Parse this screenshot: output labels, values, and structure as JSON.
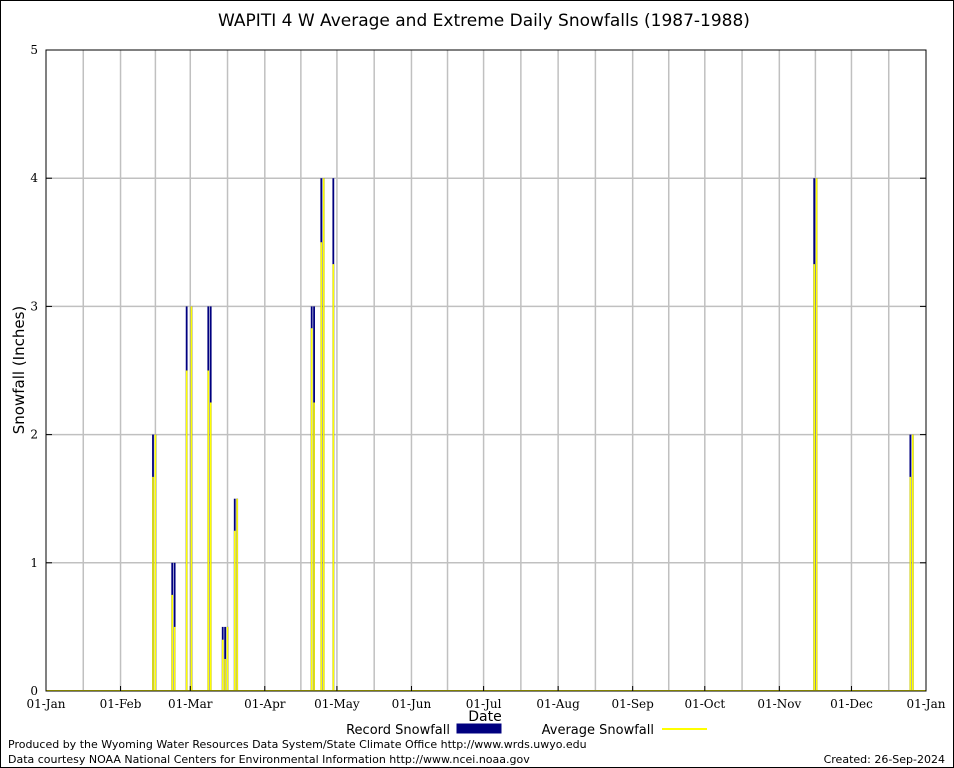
{
  "chart_data": {
    "type": "bar",
    "title": "WAPITI 4 W Average and Extreme Daily Snowfalls (1987-1988)",
    "xlabel": "Date",
    "ylabel": "Snowfall (Inches)",
    "ylim": [
      0,
      5
    ],
    "yticks": [
      "0",
      "1",
      "2",
      "3",
      "4",
      "5"
    ],
    "xticks": [
      "01-Jan",
      "01-Feb",
      "01-Mar",
      "01-Apr",
      "01-May",
      "01-Jun",
      "01-Jul",
      "01-Aug",
      "01-Sep",
      "01-Oct",
      "01-Nov",
      "01-Dec",
      "01-Jan"
    ],
    "grid": true,
    "series": [
      {
        "name": "Record Snowfall",
        "color": "#00007f",
        "points": [
          {
            "date": "Feb-14",
            "value": 2.0
          },
          {
            "date": "Feb-15",
            "value": 2.0
          },
          {
            "date": "Feb-22",
            "value": 1.0
          },
          {
            "date": "Feb-23",
            "value": 1.0
          },
          {
            "date": "Feb-28",
            "value": 3.0
          },
          {
            "date": "Mar-01",
            "value": 3.0
          },
          {
            "date": "Mar-08",
            "value": 3.0
          },
          {
            "date": "Mar-09",
            "value": 3.0
          },
          {
            "date": "Mar-14",
            "value": 0.5
          },
          {
            "date": "Mar-15",
            "value": 0.5
          },
          {
            "date": "Mar-16",
            "value": 0.5
          },
          {
            "date": "Mar-19",
            "value": 1.5
          },
          {
            "date": "Mar-20",
            "value": 1.5
          },
          {
            "date": "Apr-20",
            "value": 3.0
          },
          {
            "date": "Apr-21",
            "value": 3.0
          },
          {
            "date": "Apr-24",
            "value": 4.0
          },
          {
            "date": "Apr-25",
            "value": 4.0
          },
          {
            "date": "Apr-29",
            "value": 4.0
          },
          {
            "date": "Nov-15",
            "value": 4.0
          },
          {
            "date": "Nov-16",
            "value": 4.0
          },
          {
            "date": "Dec-25",
            "value": 2.0
          },
          {
            "date": "Dec-26",
            "value": 2.0
          }
        ]
      },
      {
        "name": "Average Snowfall",
        "color": "#ffff00",
        "points": [
          {
            "date": "Feb-14",
            "value": 1.67
          },
          {
            "date": "Feb-15",
            "value": 2.0
          },
          {
            "date": "Feb-22",
            "value": 0.75
          },
          {
            "date": "Feb-23",
            "value": 0.5
          },
          {
            "date": "Feb-28",
            "value": 2.5
          },
          {
            "date": "Mar-01",
            "value": 3.0
          },
          {
            "date": "Mar-08",
            "value": 2.5
          },
          {
            "date": "Mar-09",
            "value": 2.25
          },
          {
            "date": "Mar-14",
            "value": 0.4
          },
          {
            "date": "Mar-15",
            "value": 0.25
          },
          {
            "date": "Mar-16",
            "value": 0.5
          },
          {
            "date": "Mar-19",
            "value": 1.25
          },
          {
            "date": "Mar-20",
            "value": 1.5
          },
          {
            "date": "Apr-20",
            "value": 2.83
          },
          {
            "date": "Apr-21",
            "value": 2.25
          },
          {
            "date": "Apr-24",
            "value": 3.5
          },
          {
            "date": "Apr-25",
            "value": 4.0
          },
          {
            "date": "Apr-29",
            "value": 3.33
          },
          {
            "date": "Nov-15",
            "value": 3.33
          },
          {
            "date": "Nov-16",
            "value": 4.0
          },
          {
            "date": "Dec-25",
            "value": 1.67
          },
          {
            "date": "Dec-26",
            "value": 2.0
          }
        ]
      }
    ],
    "legend": {
      "placement": "bottom-center"
    }
  },
  "footer": {
    "produced_by": "Produced by the Wyoming Water Resources Data System/State Climate Office http://www.wrds.uwyo.edu",
    "data_courtesy": "Data courtesy NOAA National Centers for Environmental Information http://www.ncei.noaa.gov",
    "created": "Created:  26-Sep-2024"
  }
}
